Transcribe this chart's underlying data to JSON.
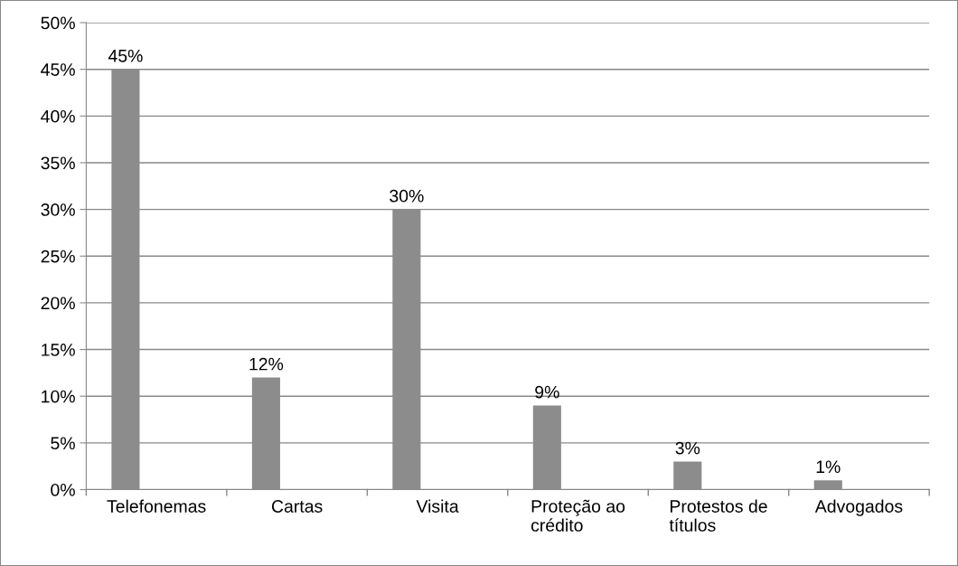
{
  "chart_data": {
    "type": "bar",
    "categories": [
      "Telefonemas",
      "Cartas",
      "Visita",
      "Proteção ao\ncrédito",
      "Protestos de\ntítulos",
      "Advogados"
    ],
    "values": [
      45,
      12,
      30,
      9,
      3,
      1
    ],
    "value_labels": [
      "45%",
      "12%",
      "30%",
      "9%",
      "3%",
      "1%"
    ],
    "color": "#8c8c8c",
    "ylim": [
      0,
      50
    ],
    "yticks": [
      {
        "value": 0,
        "label": "0%"
      },
      {
        "value": 5,
        "label": "5%"
      },
      {
        "value": 10,
        "label": "10%"
      },
      {
        "value": 15,
        "label": "15%"
      },
      {
        "value": 20,
        "label": "20%"
      },
      {
        "value": 25,
        "label": "25%"
      },
      {
        "value": 30,
        "label": "30%"
      },
      {
        "value": 35,
        "label": "35%"
      },
      {
        "value": 40,
        "label": "40%"
      },
      {
        "value": 45,
        "label": "45%"
      },
      {
        "value": 50,
        "label": "50%"
      }
    ],
    "grid": "y",
    "legend": false
  }
}
